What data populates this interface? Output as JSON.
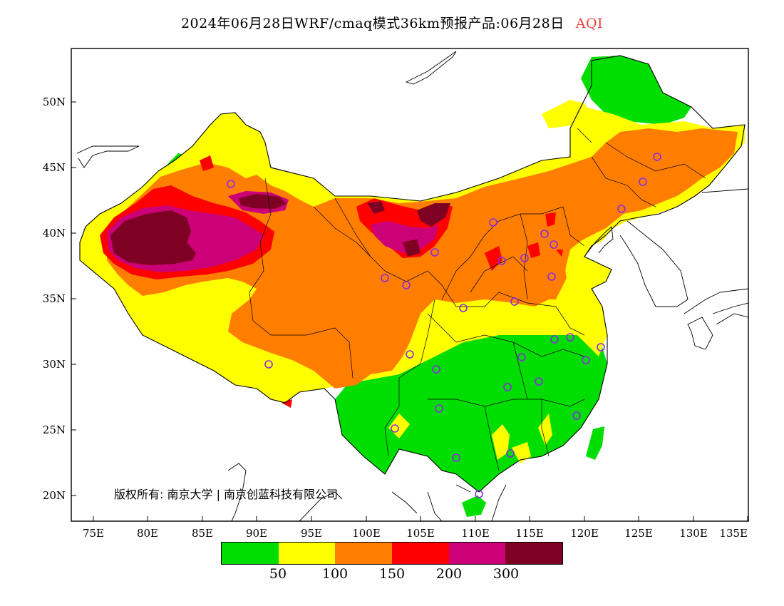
{
  "title": {
    "text": "2024年06月28日WRF/cmaq模式36km预报产品:06月28日",
    "variable": "AQI"
  },
  "axes": {
    "lat_ticks": [
      "50N",
      "45N",
      "40N",
      "35N",
      "30N",
      "25N",
      "20N"
    ],
    "lon_ticks": [
      "75E",
      "80E",
      "85E",
      "90E",
      "95E",
      "100E",
      "105E",
      "110E",
      "115E",
      "120E",
      "125E",
      "130E",
      "135E"
    ]
  },
  "copyright": "版权所有: 南京大学 | 南京创蓝科技有限公司",
  "legend": {
    "colors": [
      "#00dd00",
      "#ffff00",
      "#ff7e00",
      "#ff0000",
      "#cc0077",
      "#7e0023"
    ],
    "labels": [
      "50",
      "100",
      "150",
      "200",
      "300"
    ]
  },
  "colors": {
    "good": "#00dd00",
    "moderate": "#ffff00",
    "unhealthy_sensitive": "#ff7e00",
    "unhealthy": "#ff0000",
    "very_unhealthy": "#cc0077",
    "hazardous": "#7e0023",
    "station_marker": "#8a2be2"
  }
}
